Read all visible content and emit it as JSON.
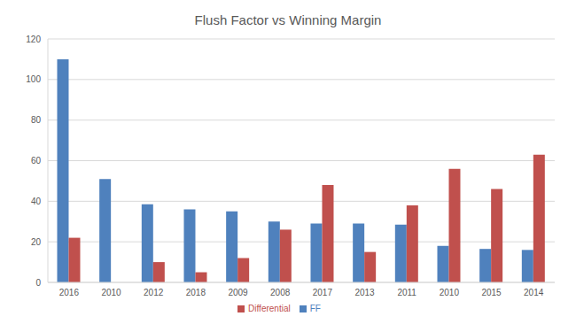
{
  "chart_data": {
    "type": "bar",
    "title": "Flush Factor vs Winning Margin",
    "categories": [
      "2016",
      "2010",
      "2012",
      "2018",
      "2009",
      "2008",
      "2017",
      "2013",
      "2011",
      "2010",
      "2015",
      "2014"
    ],
    "series": [
      {
        "name": "FF",
        "color": "#4f81bd",
        "values": [
          110,
          51,
          38.5,
          36,
          35,
          30,
          29,
          29,
          28.5,
          18,
          16.5,
          16
        ]
      },
      {
        "name": "Differential",
        "color": "#c0504d",
        "values": [
          22,
          0,
          10,
          5,
          12,
          26,
          48,
          15,
          38,
          56,
          46,
          63
        ]
      }
    ],
    "ylim": [
      0,
      120
    ],
    "yticks": [
      0,
      20,
      40,
      60,
      80,
      100,
      120
    ],
    "grid": true,
    "legend": "bottom"
  }
}
